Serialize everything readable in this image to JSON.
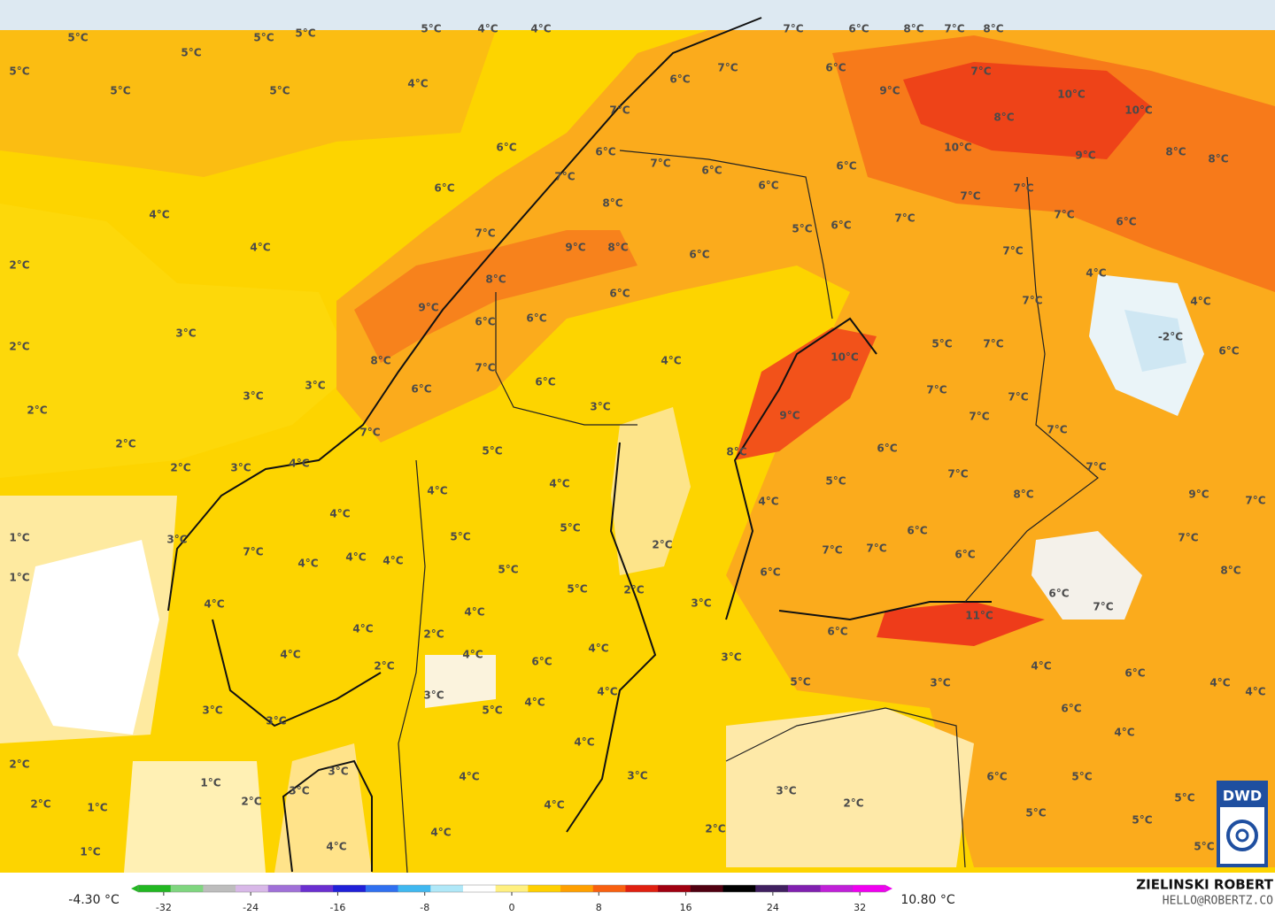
{
  "map": {
    "labels": [
      "5°C",
      "5°C",
      "5°C",
      "5°C",
      "4°C",
      "4°C",
      "5°C",
      "5°C",
      "5°C",
      "5°C",
      "4°C",
      "7°C",
      "6°C",
      "8°C",
      "7°C",
      "8°C",
      "7°C",
      "6°C",
      "6°C",
      "7°C",
      "9°C",
      "10°C",
      "10°C",
      "8°C",
      "7°C",
      "10°C",
      "9°C",
      "8°C",
      "8°C",
      "6°C",
      "6°C",
      "7°C",
      "6°C",
      "6°C",
      "6°C",
      "7°C",
      "6°C",
      "7°C",
      "7°C",
      "4°C",
      "8°C",
      "7°C",
      "7°C",
      "6°C",
      "5°C",
      "6°C",
      "7°C",
      "4°C",
      "9°C",
      "8°C",
      "6°C",
      "7°C",
      "2°C",
      "4°C",
      "8°C",
      "6°C",
      "9°C",
      "6°C",
      "6°C",
      "7°C",
      "4°C",
      "3°C",
      "-2°C",
      "2°C",
      "5°C",
      "7°C",
      "6°C",
      "10°C",
      "8°C",
      "4°C",
      "7°C",
      "6°C",
      "3°C",
      "6°C",
      "7°C",
      "3°C",
      "7°C",
      "2°C",
      "3°C",
      "9°C",
      "7°C",
      "7°C",
      "7°C",
      "2°C",
      "8°C",
      "5°C",
      "6°C",
      "2°C",
      "3°C",
      "4°C",
      "7°C",
      "4°C",
      "4°C",
      "5°C",
      "7°C",
      "8°C",
      "9°C",
      "7°C",
      "4°C",
      "4°C",
      "5°C",
      "6°C",
      "1°C",
      "3°C",
      "5°C",
      "7°C",
      "7°C",
      "4°C",
      "4°C",
      "4°C",
      "2°C",
      "7°C",
      "7°C",
      "6°C",
      "5°C",
      "6°C",
      "8°C",
      "1°C",
      "5°C",
      "2°C",
      "6°C",
      "4°C",
      "3°C",
      "7°C",
      "4°C",
      "11°C",
      "4°C",
      "2°C",
      "6°C",
      "4°C",
      "4°C",
      "6°C",
      "4°C",
      "3°C",
      "2°C",
      "4°C",
      "6°C",
      "5°C",
      "3°C",
      "4°C",
      "3°C",
      "4°C",
      "4°C",
      "4°C",
      "5°C",
      "3°C",
      "3°C",
      "6°C",
      "4°C",
      "4°C",
      "2°C",
      "3°C",
      "4°C",
      "3°C",
      "6°C",
      "5°C",
      "1°C",
      "3°C",
      "3°C",
      "2°C",
      "1°C",
      "2°C",
      "4°C",
      "2°C",
      "5°C",
      "2°C",
      "4°C",
      "5°C",
      "5°C",
      "1°C",
      "4°C",
      "5°C"
    ],
    "colorbar": {
      "min_label": "-4.30 °C",
      "max_label": "10.80 °C",
      "range": [
        -35,
        35
      ],
      "ticks": [
        -32,
        -24,
        -16,
        -8,
        0,
        8,
        16,
        24,
        32
      ]
    },
    "author": "ZIELINSKI ROBERT",
    "contact": "HELLO@ROBERTZ.CO",
    "logo": "DWD"
  }
}
